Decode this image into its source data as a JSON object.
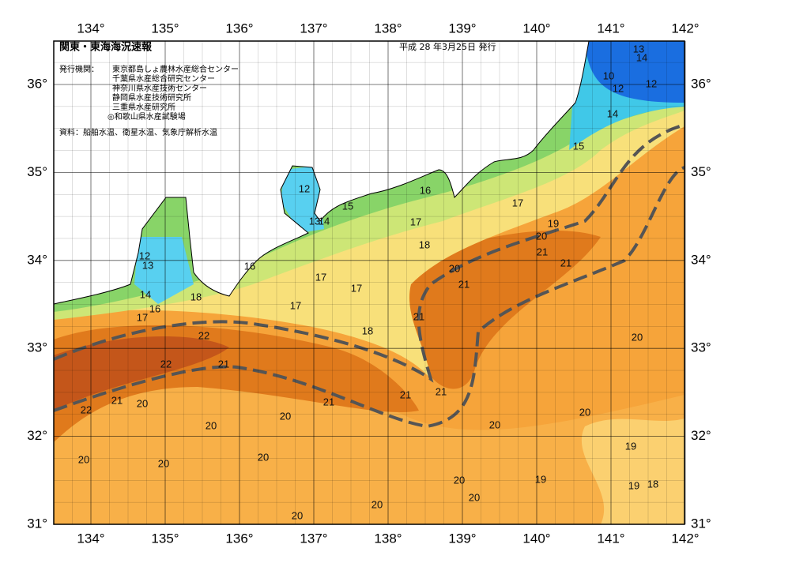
{
  "header": {
    "title": "関東・東海海況速報",
    "date": "平成 28 年3月25日 発行"
  },
  "issuers": {
    "label": "発行機関：",
    "list": [
      "東京都島しょ農林水産総合センター",
      "千葉県水産総合研究センター",
      "神奈川県水産技術センター",
      "静岡県水産技術研究所",
      "三重県水産研究所",
      "◎和歌山県水産試験場"
    ]
  },
  "source": "資料：船舶水温、衛星水温、気象庁解析水温",
  "map": {
    "lon_ticks": [
      {
        "value": 134,
        "label": "134°"
      },
      {
        "value": 135,
        "label": "135°"
      },
      {
        "value": 136,
        "label": "136°"
      },
      {
        "value": 137,
        "label": "137°"
      },
      {
        "value": 138,
        "label": "138°"
      },
      {
        "value": 139,
        "label": "139°"
      },
      {
        "value": 140,
        "label": "140°"
      },
      {
        "value": 141,
        "label": "141°"
      },
      {
        "value": 142,
        "label": "142°"
      }
    ],
    "lat_ticks": [
      {
        "value": 31,
        "label": "31°"
      },
      {
        "value": 32,
        "label": "32°"
      },
      {
        "value": 33,
        "label": "33°"
      },
      {
        "value": 34,
        "label": "34°"
      },
      {
        "value": 35,
        "label": "35°"
      },
      {
        "value": 36,
        "label": "36°"
      }
    ],
    "contour_labels": [
      13,
      14,
      10,
      12,
      12,
      14,
      15,
      16,
      12,
      15,
      17,
      17,
      19,
      20,
      21,
      18,
      21,
      20,
      21,
      12,
      13,
      16,
      17,
      17,
      18,
      14,
      16,
      17,
      17,
      18,
      21,
      22,
      22,
      21,
      20,
      21,
      21,
      21,
      21,
      22,
      20,
      20,
      20,
      20,
      20,
      19,
      20,
      20,
      20,
      20,
      19,
      20,
      19,
      18,
      20,
      20,
      13,
      14
    ]
  }
}
